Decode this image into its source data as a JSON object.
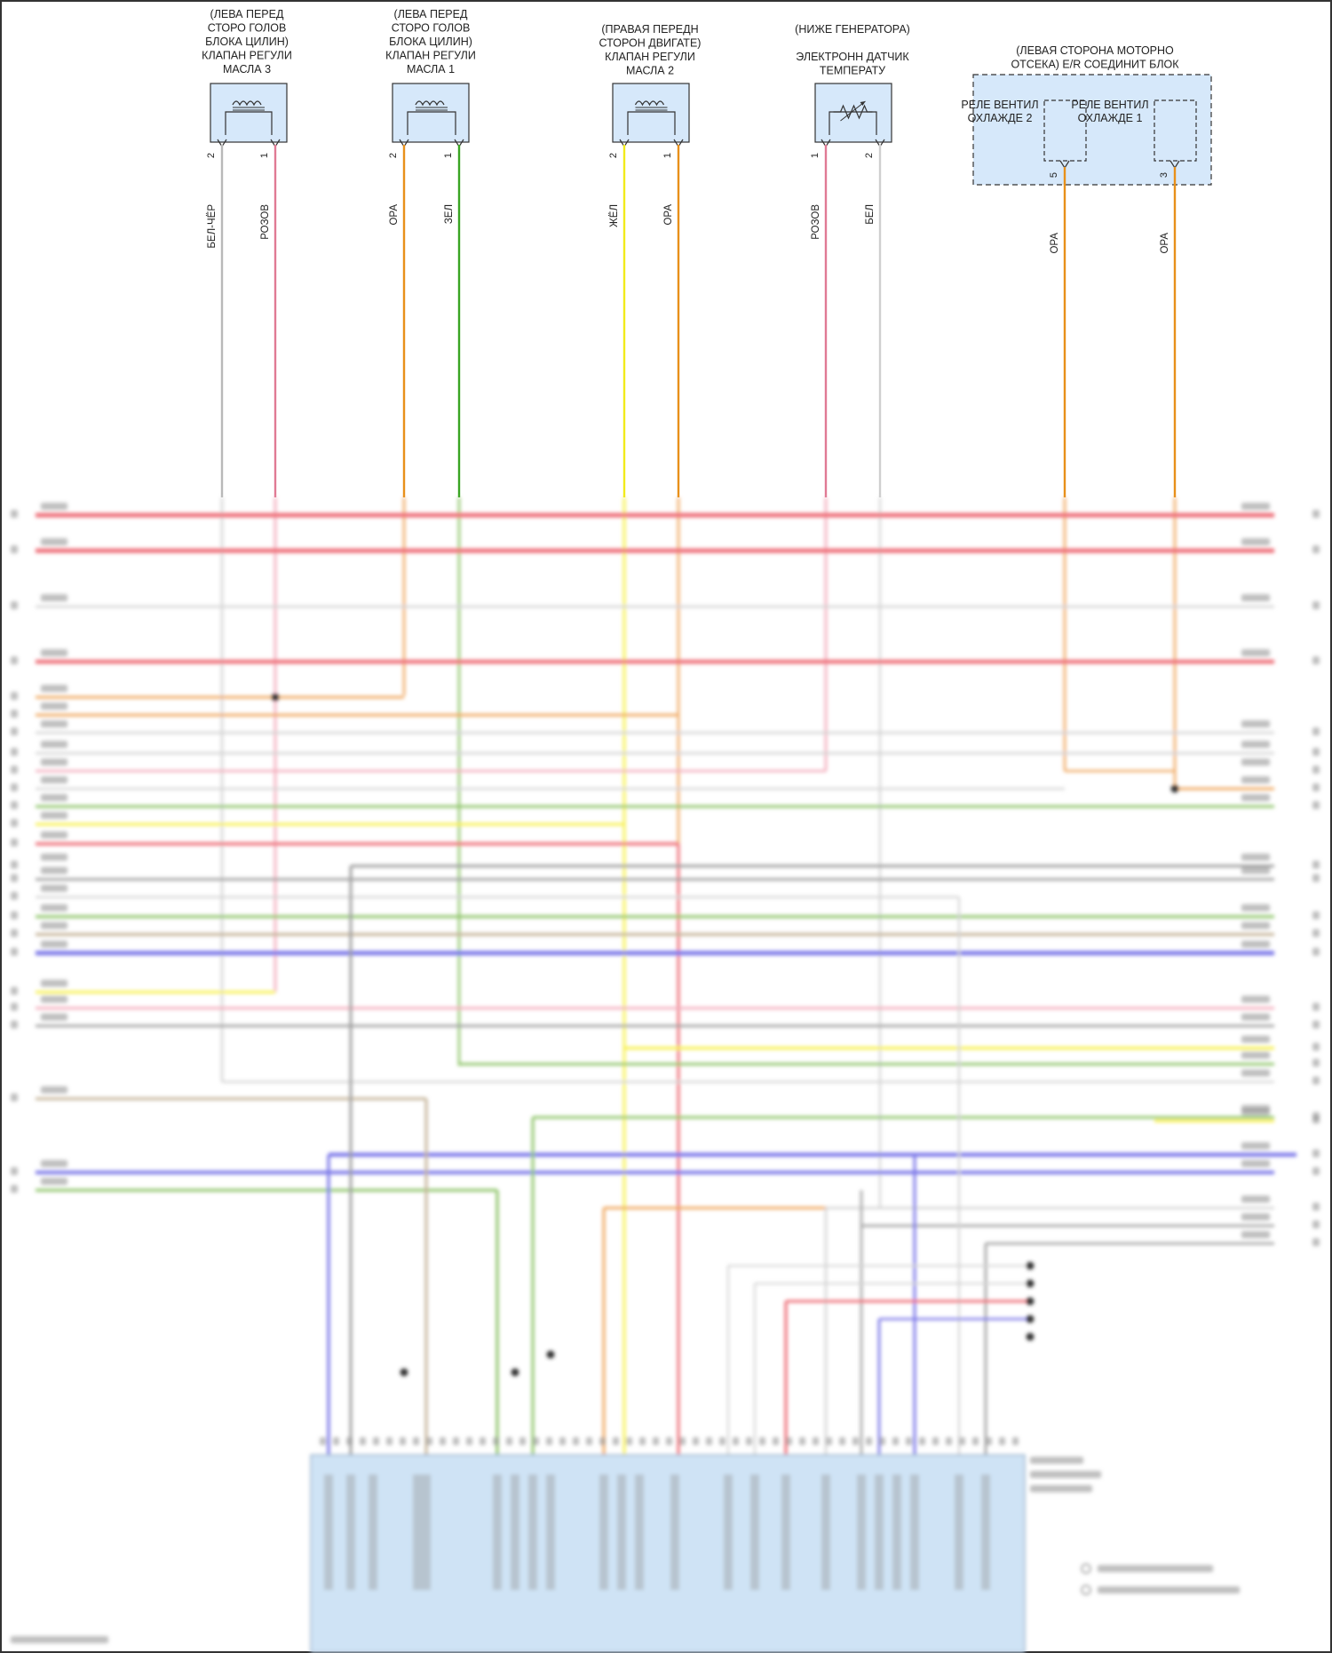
{
  "components": [
    {
      "id": "valve3",
      "caption": [
        "(ЛЕВА ПЕРЕД",
        "СТОРО ГОЛОВ",
        "БЛОКА ЦИЛИН)",
        "КЛАПАН РЕГУЛИ",
        "МАСЛА 3"
      ],
      "kind": "solenoid",
      "pins": [
        {
          "num": "2",
          "wire": "БЕЛ-ЧЁР",
          "color": "#b9b9b9"
        },
        {
          "num": "1",
          "wire": "РОЗОВ",
          "color": "#e07a94"
        }
      ]
    },
    {
      "id": "valve1",
      "caption": [
        "(ЛЕВА ПЕРЕД",
        "СТОРО ГОЛОВ",
        "БЛОКА ЦИЛИН)",
        "КЛАПАН РЕГУЛИ",
        "МАСЛА 1"
      ],
      "kind": "solenoid",
      "pins": [
        {
          "num": "2",
          "wire": "ОРА",
          "color": "#e8901a"
        },
        {
          "num": "1",
          "wire": "ЗЕЛ",
          "color": "#3aa523"
        }
      ]
    },
    {
      "id": "valve2",
      "caption": [
        "(ПРАВАЯ ПЕРЕДН",
        "СТОРОН ДВИГАТЕ)",
        "КЛАПАН РЕГУЛИ",
        "МАСЛА 2"
      ],
      "kind": "solenoid",
      "pins": [
        {
          "num": "2",
          "wire": "ЖЁЛ",
          "color": "#f2ea1a"
        },
        {
          "num": "1",
          "wire": "ОРА",
          "color": "#e8901a"
        }
      ]
    },
    {
      "id": "tempsensor",
      "caption": [
        "(НИЖЕ ГЕНЕРАТОРА)",
        "",
        "ЭЛЕКТРОНН ДАТЧИК",
        "ТЕМПЕРАТУ"
      ],
      "kind": "thermistor",
      "pins": [
        {
          "num": "1",
          "wire": "РОЗОВ",
          "color": "#e07a94"
        },
        {
          "num": "2",
          "wire": "БЕЛ",
          "color": "#cfcfcf"
        }
      ]
    }
  ],
  "relay_block": {
    "caption": [
      "(ЛЕВАЯ СТОРОНА МОТОРНО",
      "ОТСЕКА) E/R СОЕДИНИТ БЛОК"
    ],
    "relays": [
      {
        "label": [
          "РЕЛЕ ВЕНТИЛ",
          "ОХЛАЖДЕ 2"
        ],
        "pin": "5",
        "wire": "ОРА",
        "color": "#e8901a"
      },
      {
        "label": [
          "РЕЛЕ ВЕНТИЛ",
          "ОХЛАЖДЕ 1"
        ],
        "pin": "3",
        "wire": "ОРА",
        "color": "#e8901a"
      }
    ]
  },
  "colors": {
    "red": "#ee6e78",
    "gray": "#9c9c9c",
    "lightgray": "#d2d2d2",
    "orange": "#f0a860",
    "pink": "#f3a9b9",
    "green": "#8fc56a",
    "yellow": "#f7f04a",
    "blue": "#7c78e8",
    "tan": "#c4b398",
    "ecm_fill": "#cfe3f5",
    "relay_fill": "#d6e8fa"
  }
}
